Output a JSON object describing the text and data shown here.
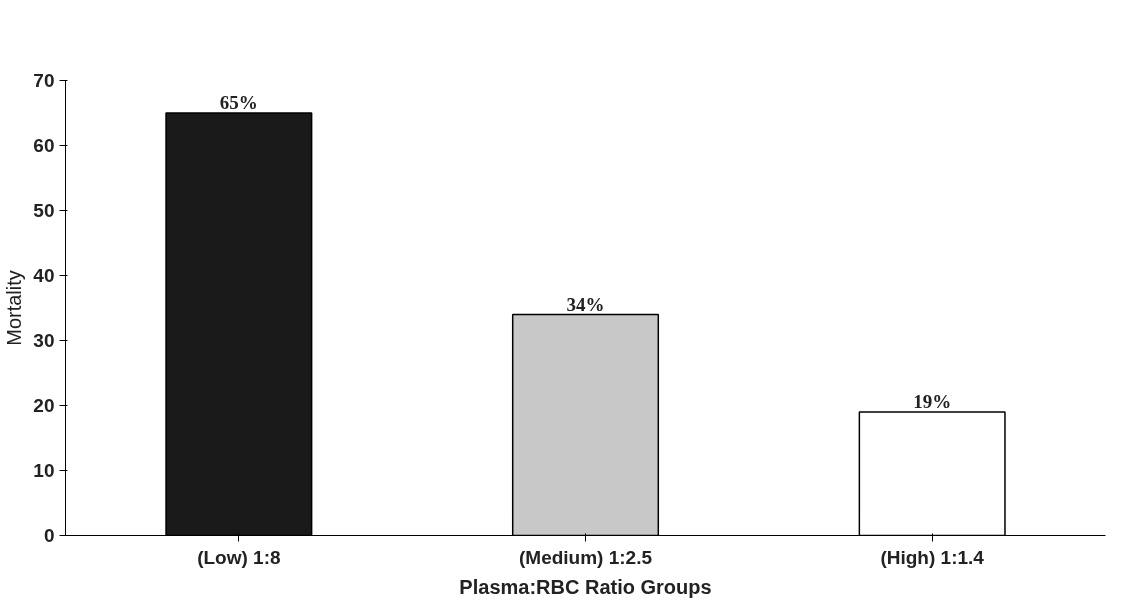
{
  "chart_data": {
    "type": "bar",
    "xlabel": "Plasma:RBC Ratio Groups",
    "ylabel": "Mortality",
    "categories": [
      "(Low) 1:8",
      "(Medium) 1:2.5",
      "(High) 1:1.4"
    ],
    "values": [
      65,
      34,
      19
    ],
    "colors": [
      "#1a1a1a",
      "#c8c8c8",
      "#ffffff"
    ],
    "value_labels": [
      "65%",
      "34%",
      "19%"
    ],
    "ylim": [
      0,
      70
    ],
    "yticks": [
      0,
      10,
      20,
      30,
      40,
      50,
      60,
      70
    ]
  }
}
